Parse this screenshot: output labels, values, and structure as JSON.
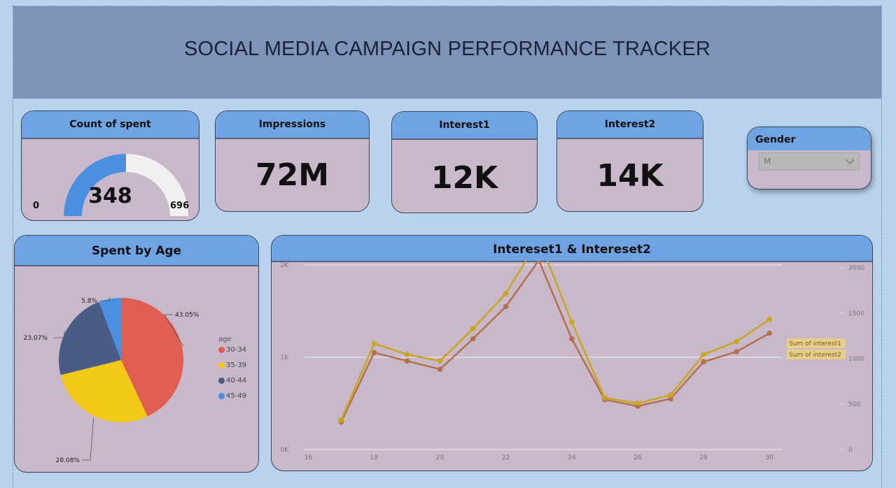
{
  "header": {
    "title": "SOCIAL MEDIA CAMPAIGN PERFORMANCE TRACKER"
  },
  "kpis": {
    "count_spent": {
      "label": "Count of spent",
      "value": "348",
      "value_num": 348,
      "min": "0",
      "max": "696",
      "max_num": 696
    },
    "impressions": {
      "label": "Impressions",
      "value": "72M"
    },
    "interest1": {
      "label": "Interest1",
      "value": "12K"
    },
    "interest2": {
      "label": "Interest2",
      "value": "14K"
    }
  },
  "slicer": {
    "label": "Gender",
    "selected": "M"
  },
  "colors": {
    "gauge_fill": "#4a8fe0",
    "gauge_track": "#f0f0f0",
    "series1": "#c9a61c",
    "series2": "#b3704c"
  },
  "chart_data": [
    {
      "type": "pie",
      "title": "Spent by Age",
      "legend_title": "age",
      "categories": [
        "30-34",
        "35-39",
        "40-44",
        "45-49"
      ],
      "values": [
        43.05,
        28.08,
        23.07,
        5.8
      ],
      "labels": [
        "43.05%",
        "28.08%",
        "23.07%",
        "5.8%"
      ],
      "colors": [
        "#e05d52",
        "#f2c916",
        "#4a5b85",
        "#4a8fe0"
      ]
    },
    {
      "type": "line",
      "title": "Intereset1 & Intereset2",
      "x": [
        17,
        18,
        19,
        20,
        21,
        22,
        23,
        24,
        25,
        26,
        27,
        28,
        29,
        30
      ],
      "xticks": [
        "16",
        "18",
        "20",
        "22",
        "24",
        "26",
        "28",
        "30"
      ],
      "xlim": [
        15.8,
        30.4
      ],
      "y_left_ticks": [
        "0K",
        "1K",
        "2K"
      ],
      "y_left_lim": [
        0,
        2000
      ],
      "y_right_ticks": [
        "0",
        "500",
        "1000",
        "1500",
        "2000"
      ],
      "y_right_lim": [
        0,
        2000
      ],
      "series": [
        {
          "name": "Sum of interest1",
          "values": [
            320,
            1150,
            1030,
            960,
            1310,
            1690,
            2280,
            1380,
            560,
            500,
            590,
            1030,
            1170,
            1410
          ]
        },
        {
          "name": "Sum of interest2",
          "values": [
            300,
            1050,
            960,
            870,
            1200,
            1550,
            2050,
            1200,
            540,
            470,
            550,
            950,
            1060,
            1260
          ]
        }
      ]
    }
  ]
}
